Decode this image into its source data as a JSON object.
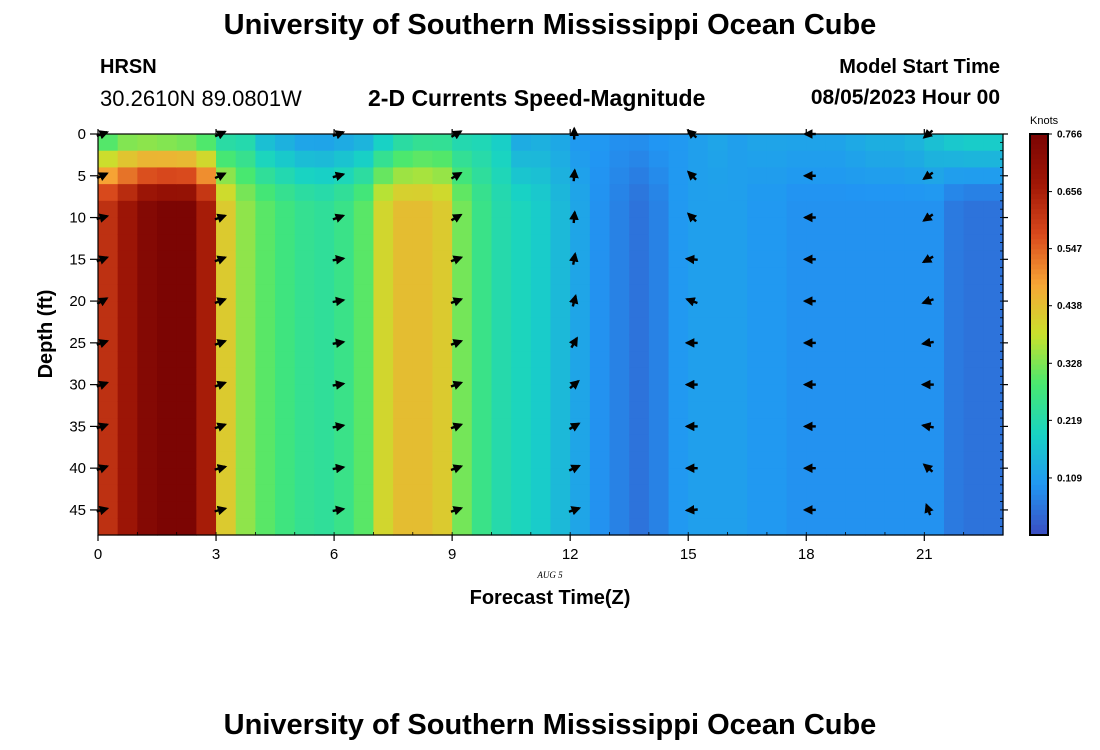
{
  "header": {
    "title": "University of Southern Mississippi Ocean Cube",
    "station": "HRSN",
    "coords": "30.2610N  89.0801W",
    "plot_title": "2-D Currents Speed-Magnitude",
    "start_label": "Model Start Time",
    "start_value": "08/05/2023 Hour 00"
  },
  "footer": {
    "title": "University of Southern Mississippi Ocean Cube"
  },
  "date_label": "AUG 5",
  "colorbar": {
    "unit": "Knots",
    "ticks": [
      0.766,
      0.656,
      0.547,
      0.438,
      0.328,
      0.219,
      0.109
    ],
    "colors": [
      "#3b4cc0",
      "#2196f3",
      "#18d3c4",
      "#48e870",
      "#c9e12c",
      "#f7a535",
      "#d8481c",
      "#a01706",
      "#7a0403"
    ]
  },
  "chart_data": {
    "type": "heatmap",
    "title": "2-D Currents Speed-Magnitude",
    "xlabel": "Forecast Time(Z)",
    "ylabel": "Depth (ft)",
    "xlim": [
      0,
      23
    ],
    "ylim": [
      48,
      0
    ],
    "y_reversed": true,
    "x_ticks": [
      0,
      3,
      6,
      9,
      12,
      15,
      18,
      21
    ],
    "y_ticks": [
      0,
      5,
      10,
      15,
      20,
      25,
      30,
      35,
      40,
      45
    ],
    "value_range": [
      0,
      0.766
    ],
    "speed_hours": [
      0,
      0.5,
      1,
      1.5,
      2,
      2.5,
      3,
      3.5,
      4,
      4.5,
      5,
      5.5,
      6,
      6.5,
      7,
      7.5,
      8,
      8.5,
      9,
      9.5,
      10,
      10.5,
      11,
      11.5,
      12,
      12.5,
      13,
      13.5,
      14,
      14.5,
      15,
      15.5,
      16,
      16.5,
      17,
      17.5,
      18,
      18.5,
      19,
      19.5,
      20,
      20.5,
      21,
      21.5,
      22,
      22.5,
      23
    ],
    "surface_speed": [
      0.25,
      0.28,
      0.28,
      0.27,
      0.26,
      0.24,
      0.2,
      0.2,
      0.14,
      0.12,
      0.1,
      0.1,
      0.11,
      0.12,
      0.16,
      0.2,
      0.22,
      0.22,
      0.2,
      0.2,
      0.18,
      0.12,
      0.13,
      0.12,
      0.1,
      0.1,
      0.09,
      0.09,
      0.1,
      0.1,
      0.11,
      0.12,
      0.11,
      0.12,
      0.12,
      0.12,
      0.12,
      0.12,
      0.13,
      0.14,
      0.14,
      0.15,
      0.17,
      0.19,
      0.2,
      0.2,
      0.2
    ],
    "deep_speed": [
      0.62,
      0.68,
      0.74,
      0.76,
      0.76,
      0.66,
      0.42,
      0.34,
      0.3,
      0.27,
      0.25,
      0.24,
      0.26,
      0.3,
      0.4,
      0.44,
      0.44,
      0.42,
      0.32,
      0.26,
      0.22,
      0.2,
      0.18,
      0.15,
      0.12,
      0.09,
      0.07,
      0.05,
      0.07,
      0.1,
      0.11,
      0.11,
      0.11,
      0.1,
      0.1,
      0.09,
      0.09,
      0.09,
      0.09,
      0.09,
      0.09,
      0.09,
      0.09,
      0.06,
      0.05,
      0.05,
      0.06
    ],
    "arrows": {
      "hours": [
        0,
        3,
        6,
        9,
        12,
        15,
        18,
        21
      ],
      "depths": [
        0,
        5,
        10,
        15,
        20,
        25,
        30,
        35,
        40,
        45
      ],
      "direction_deg": [
        [
          20,
          25,
          15,
          20,
          30,
          20,
          20,
          20,
          20,
          15
        ],
        [
          25,
          25,
          20,
          20,
          20,
          20,
          20,
          20,
          15,
          15
        ],
        [
          20,
          15,
          20,
          10,
          10,
          10,
          10,
          10,
          10,
          10
        ],
        [
          30,
          30,
          30,
          20,
          20,
          20,
          20,
          20,
          20,
          20
        ],
        [
          90,
          85,
          85,
          80,
          75,
          60,
          40,
          30,
          25,
          20
        ],
        [
          140,
          135,
          135,
          175,
          160,
          180,
          180,
          180,
          180,
          185
        ],
        [
          180,
          180,
          180,
          180,
          180,
          180,
          180,
          180,
          180,
          180
        ],
        [
          220,
          215,
          215,
          210,
          200,
          190,
          180,
          170,
          140,
          110
        ]
      ]
    }
  }
}
